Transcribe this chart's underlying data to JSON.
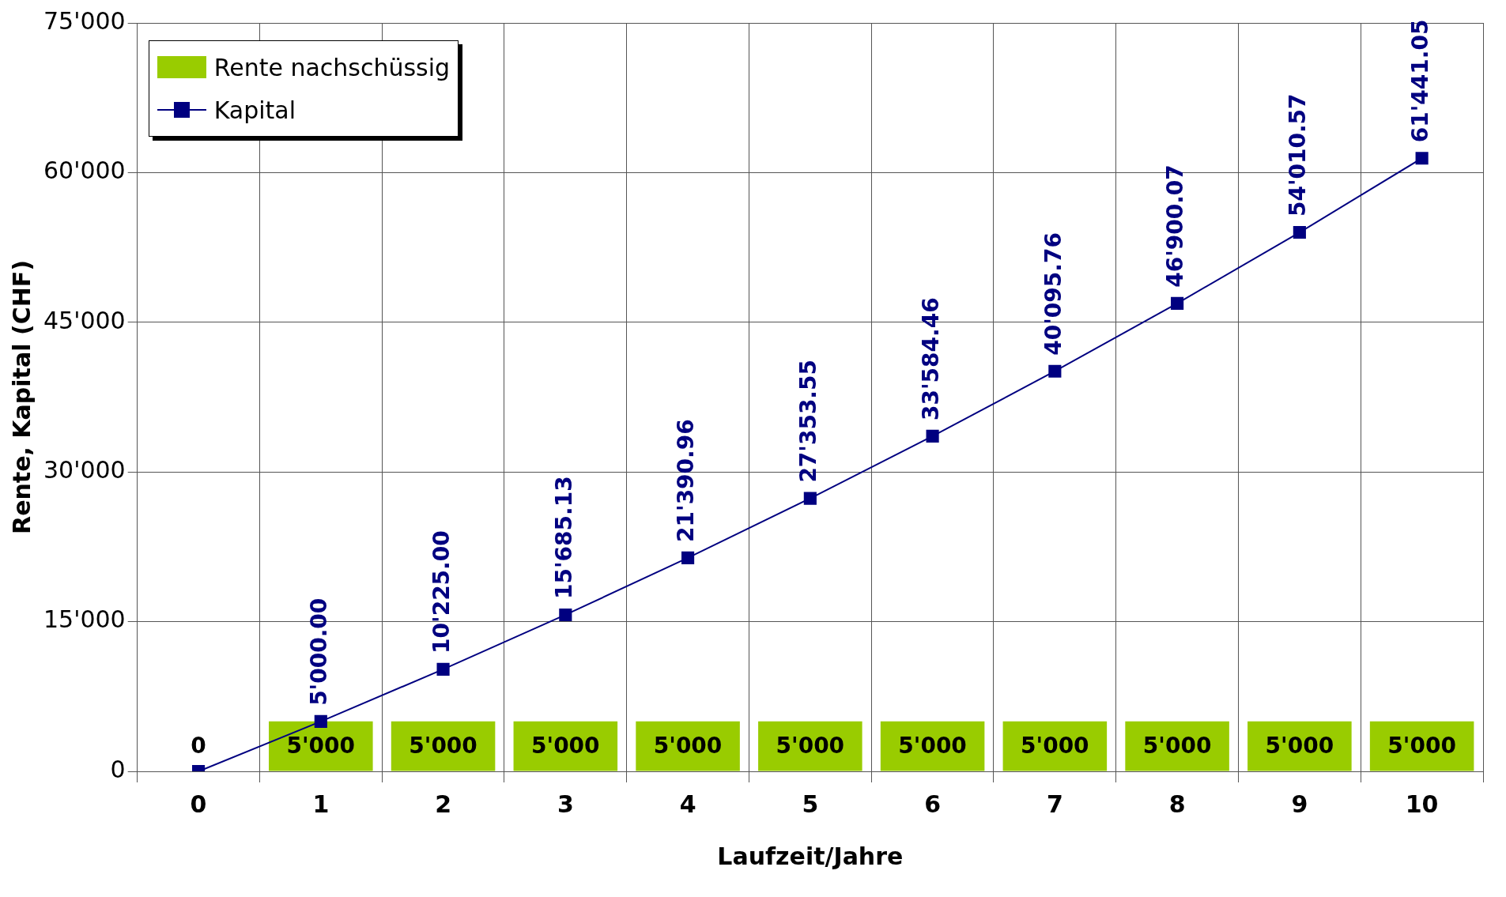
{
  "chart_data": {
    "type": "bar",
    "xlabel": "Laufzeit/Jahre",
    "ylabel": "Rente, Kapital (CHF)",
    "categories": [
      "0",
      "1",
      "2",
      "3",
      "4",
      "5",
      "6",
      "7",
      "8",
      "9",
      "10"
    ],
    "series": [
      {
        "name": "Rente nachschüssig",
        "color": "#99cc00",
        "values": [
          0,
          5000,
          5000,
          5000,
          5000,
          5000,
          5000,
          5000,
          5000,
          5000,
          5000
        ],
        "value_labels": [
          "0",
          "5'000",
          "5'000",
          "5'000",
          "5'000",
          "5'000",
          "5'000",
          "5'000",
          "5'000",
          "5'000",
          "5'000"
        ]
      },
      {
        "name": "Kapital",
        "type": "line",
        "color": "#000080",
        "values": [
          0,
          5000,
          10225,
          15685.13,
          21390.96,
          27353.55,
          33584.46,
          40095.76,
          46900.07,
          54010.57,
          61441.05
        ],
        "value_labels": [
          null,
          "5'000.00",
          "10'225.00",
          "15'685.13",
          "21'390.96",
          "27'353.55",
          "33'584.46",
          "40'095.76",
          "46'900.07",
          "54'010.57",
          "61'441.05"
        ]
      }
    ],
    "ylim": [
      0,
      75000
    ],
    "yticks": [
      {
        "value": 0,
        "label": "0"
      },
      {
        "value": 15000,
        "label": "15'000"
      },
      {
        "value": 30000,
        "label": "30'000"
      },
      {
        "value": 45000,
        "label": "45'000"
      },
      {
        "value": 60000,
        "label": "60'000"
      },
      {
        "value": 75000,
        "label": "75'000"
      }
    ],
    "grid": true,
    "legend": "top left",
    "marker": "square"
  }
}
